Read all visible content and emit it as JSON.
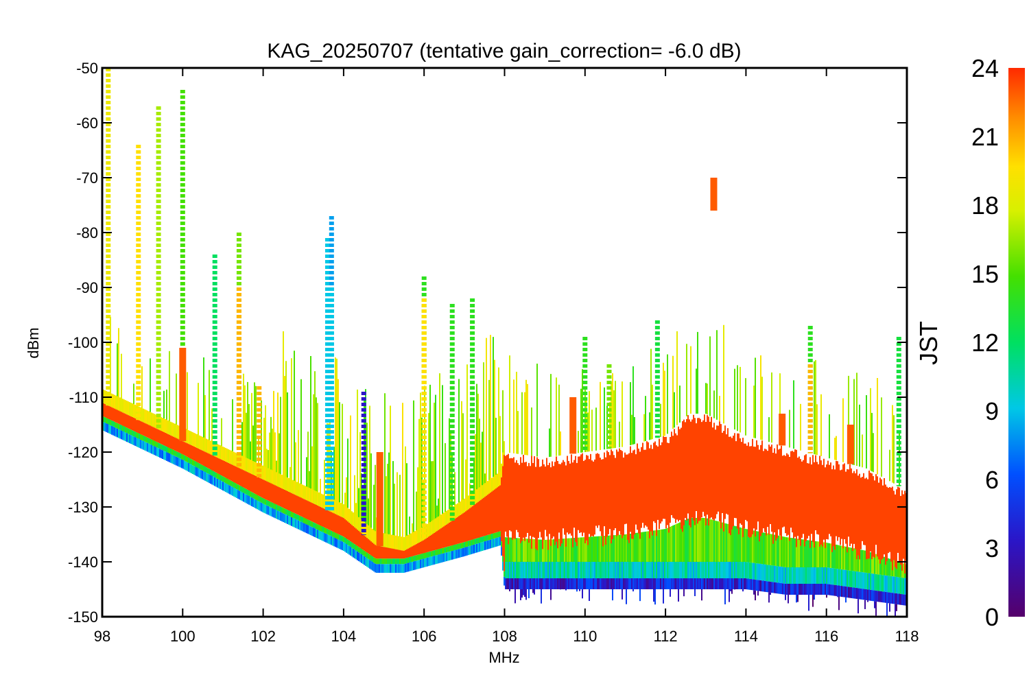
{
  "chart_data": {
    "type": "scatter",
    "title": "KAG_20250707 (tentative gain_correction= -6.0 dB)",
    "xlabel": "MHz",
    "ylabel": "dBm",
    "xlim": [
      98,
      118
    ],
    "ylim": [
      -150,
      -50
    ],
    "xticks": [
      98,
      100,
      102,
      104,
      106,
      108,
      110,
      112,
      114,
      116,
      118
    ],
    "yticks": [
      -50,
      -60,
      -70,
      -80,
      -90,
      -100,
      -110,
      -120,
      -130,
      -140,
      -150
    ],
    "colorbar": {
      "label": "JST",
      "range": [
        0,
        24
      ],
      "ticks": [
        24,
        21,
        18,
        15,
        12,
        9,
        6,
        3,
        0
      ]
    },
    "series_description": "Spectrum sweeps colored by JST hour (0-24)",
    "noise_floor": {
      "x": [
        98,
        100,
        102,
        104,
        104.8,
        105.5,
        106,
        107,
        107.9,
        108,
        109,
        110,
        111,
        112,
        112.6,
        113,
        113.5,
        114,
        115,
        116,
        117,
        118
      ],
      "upper": [
        -111,
        -118,
        -125,
        -132,
        -137,
        -138,
        -136,
        -131,
        -126,
        -120,
        -121,
        -120,
        -119,
        -117,
        -113,
        -113,
        -115,
        -117,
        -119,
        -121,
        -123,
        -127
      ],
      "lower": [
        -116,
        -123,
        -131,
        -138,
        -142,
        -142,
        -141,
        -139,
        -137,
        -145,
        -145,
        -145,
        -145,
        -145,
        -145,
        -145,
        -145,
        -145,
        -146,
        -146,
        -147,
        -148
      ]
    },
    "spikes": [
      {
        "x": 98.15,
        "top": -50,
        "hour": 19
      },
      {
        "x": 98.9,
        "top": -64,
        "hour": 20
      },
      {
        "x": 99.4,
        "top": -57,
        "hour": 17
      },
      {
        "x": 100.0,
        "top": -54,
        "hour": 15
      },
      {
        "x": 100.0,
        "top": -101,
        "hour": 23
      },
      {
        "x": 100.8,
        "top": -84,
        "hour": 12
      },
      {
        "x": 101.4,
        "top": -80,
        "hour": 16
      },
      {
        "x": 101.4,
        "top": -90,
        "hour": 21
      },
      {
        "x": 101.9,
        "top": -108,
        "hour": 21
      },
      {
        "x": 103.6,
        "top": -81,
        "hour": 9
      },
      {
        "x": 103.7,
        "top": -77,
        "hour": 8
      },
      {
        "x": 103.7,
        "top": -90,
        "hour": 9
      },
      {
        "x": 104.5,
        "top": -109,
        "hour": 3
      },
      {
        "x": 104.9,
        "top": -120,
        "hour": 23
      },
      {
        "x": 106.0,
        "top": -88,
        "hour": 14
      },
      {
        "x": 106.0,
        "top": -92,
        "hour": 20
      },
      {
        "x": 106.7,
        "top": -93,
        "hour": 14
      },
      {
        "x": 107.2,
        "top": -92,
        "hour": 14
      },
      {
        "x": 109.7,
        "top": -110,
        "hour": 23
      },
      {
        "x": 110.0,
        "top": -99,
        "hour": 14
      },
      {
        "x": 110.6,
        "top": -104,
        "hour": 16
      },
      {
        "x": 111.8,
        "top": -96,
        "hour": 13
      },
      {
        "x": 113.2,
        "top": -70,
        "hour": 23
      },
      {
        "x": 114.9,
        "top": -113,
        "hour": 23
      },
      {
        "x": 115.6,
        "top": -97,
        "hour": 14
      },
      {
        "x": 115.6,
        "top": -104,
        "hour": 21
      },
      {
        "x": 116.6,
        "top": -115,
        "hour": 23
      },
      {
        "x": 117.8,
        "top": -99,
        "hour": 13
      }
    ]
  }
}
